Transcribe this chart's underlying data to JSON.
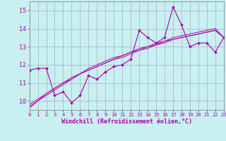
{
  "title": "",
  "xlabel": "Windchill (Refroidissement éolien,°C)",
  "ylabel": "",
  "bg_color": "#c8f0f0",
  "line_color": "#aa00aa",
  "grid_color": "#aaaacc",
  "x_data": [
    0,
    1,
    2,
    3,
    4,
    5,
    6,
    7,
    8,
    9,
    10,
    11,
    12,
    13,
    14,
    15,
    16,
    17,
    18,
    19,
    20,
    21,
    22,
    23
  ],
  "y_main": [
    11.7,
    11.8,
    11.8,
    10.3,
    10.5,
    9.9,
    10.3,
    11.4,
    11.2,
    11.6,
    11.9,
    12.0,
    12.3,
    13.9,
    13.5,
    13.2,
    13.5,
    15.2,
    14.2,
    13.0,
    13.2,
    13.2,
    12.7,
    13.5
  ],
  "y_reg1": [
    9.6,
    10.0,
    10.3,
    10.6,
    10.9,
    11.2,
    11.5,
    11.7,
    11.9,
    12.1,
    12.3,
    12.4,
    12.6,
    12.8,
    12.9,
    13.1,
    13.2,
    13.4,
    13.5,
    13.6,
    13.7,
    13.8,
    13.9,
    13.5
  ],
  "y_reg2": [
    9.7,
    10.0,
    10.4,
    10.7,
    11.0,
    11.2,
    11.5,
    11.7,
    11.9,
    12.1,
    12.3,
    12.5,
    12.7,
    12.8,
    13.0,
    13.1,
    13.3,
    13.4,
    13.5,
    13.6,
    13.7,
    13.8,
    13.9,
    13.5
  ],
  "y_reg3": [
    9.8,
    10.1,
    10.4,
    10.7,
    11.0,
    11.3,
    11.5,
    11.8,
    12.0,
    12.2,
    12.4,
    12.5,
    12.7,
    12.9,
    13.0,
    13.2,
    13.3,
    13.5,
    13.6,
    13.7,
    13.8,
    13.9,
    14.0,
    13.5
  ],
  "xlim": [
    0,
    23
  ],
  "ylim": [
    9.5,
    15.5
  ],
  "xticks": [
    0,
    1,
    2,
    3,
    4,
    5,
    6,
    7,
    8,
    9,
    10,
    11,
    12,
    13,
    14,
    15,
    16,
    17,
    18,
    19,
    20,
    21,
    22,
    23
  ],
  "yticks": [
    10,
    11,
    12,
    13,
    14,
    15
  ]
}
